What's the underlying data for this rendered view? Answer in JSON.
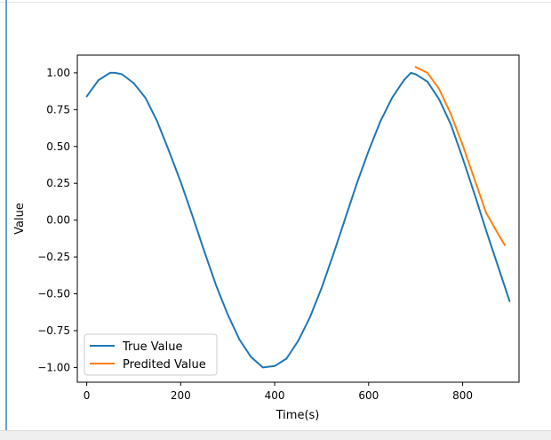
{
  "chart_data": {
    "type": "line",
    "title": "",
    "xlabel": "Time(s)",
    "ylabel": "Value",
    "xlim": [
      -20,
      920
    ],
    "ylim": [
      -1.1,
      1.12
    ],
    "xticks": [
      0,
      200,
      400,
      600,
      800
    ],
    "xtick_labels": [
      "0",
      "200",
      "400",
      "600",
      "800"
    ],
    "yticks": [
      1.0,
      0.75,
      0.5,
      0.25,
      0.0,
      -0.25,
      -0.5,
      -0.75,
      -1.0
    ],
    "ytick_labels": [
      "1.00",
      "0.75",
      "0.50",
      "0.25",
      "0.00",
      "−0.25",
      "−0.50",
      "−0.75",
      "−1.00"
    ],
    "grid": false,
    "legend_position": "lower-left",
    "series": [
      {
        "name": "True Value",
        "color": "#1f77b4",
        "x": [
          0,
          25,
          50,
          60,
          75,
          100,
          125,
          150,
          175,
          200,
          225,
          250,
          275,
          300,
          325,
          350,
          375,
          400,
          425,
          450,
          475,
          500,
          525,
          550,
          575,
          600,
          625,
          650,
          675,
          690,
          700,
          725,
          750,
          775,
          800,
          825,
          850,
          875,
          900
        ],
        "y": [
          0.84,
          0.95,
          1.0,
          1.0,
          0.99,
          0.93,
          0.83,
          0.67,
          0.47,
          0.26,
          0.03,
          -0.21,
          -0.44,
          -0.64,
          -0.81,
          -0.93,
          -1.0,
          -0.99,
          -0.94,
          -0.82,
          -0.66,
          -0.46,
          -0.23,
          0.01,
          0.25,
          0.47,
          0.67,
          0.83,
          0.95,
          1.0,
          0.99,
          0.94,
          0.82,
          0.65,
          0.42,
          0.18,
          -0.07,
          -0.31,
          -0.55
        ]
      },
      {
        "name": "Predited Value",
        "color": "#ff7f0e",
        "x": [
          700,
          725,
          750,
          775,
          800,
          825,
          850,
          875,
          890
        ],
        "y": [
          1.04,
          1.0,
          0.89,
          0.72,
          0.51,
          0.28,
          0.05,
          -0.09,
          -0.17
        ]
      }
    ]
  }
}
